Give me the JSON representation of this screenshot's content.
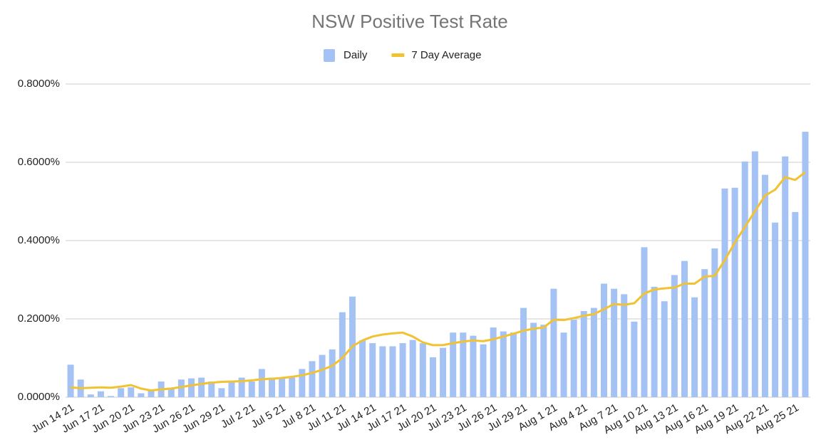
{
  "chart_data": {
    "type": "bar",
    "title": "NSW Positive Test Rate",
    "categories": [
      "Jun 14 21",
      null,
      null,
      "Jun 17 21",
      null,
      null,
      "Jun 20 21",
      null,
      null,
      "Jun 23 21",
      null,
      null,
      "Jun 26 21",
      null,
      null,
      "Jun 29 21",
      null,
      null,
      "Jul 2 21",
      null,
      null,
      "Jul 5 21",
      null,
      null,
      "Jul 8 21",
      null,
      null,
      "Jul 11 21",
      null,
      null,
      "Jul 14 21",
      null,
      null,
      "Jul 17 21",
      null,
      null,
      "Jul 20 21",
      null,
      null,
      "Jul 23 21",
      null,
      null,
      "Jul 26 21",
      null,
      null,
      "Jul 29 21",
      null,
      null,
      "Aug 1 21",
      null,
      null,
      "Aug 4 21",
      null,
      null,
      "Aug 7 21",
      null,
      null,
      "Aug 10 21",
      null,
      null,
      "Aug 13 21",
      null,
      null,
      "Aug 16 21",
      null,
      null,
      "Aug 19 21",
      null,
      null,
      "Aug 22 21",
      null,
      null,
      "Aug 25 21",
      null
    ],
    "series": [
      {
        "name": "Daily",
        "kind": "bar",
        "color": "#a4c2f4",
        "values": [
          0.083,
          0.045,
          0.007,
          0.015,
          0.003,
          0.023,
          0.025,
          0.01,
          0.018,
          0.04,
          0.022,
          0.045,
          0.048,
          0.05,
          0.04,
          0.023,
          0.04,
          0.05,
          0.04,
          0.072,
          0.05,
          0.048,
          0.05,
          0.072,
          0.092,
          0.108,
          0.122,
          0.217,
          0.257,
          0.145,
          0.138,
          0.13,
          0.13,
          0.138,
          0.146,
          0.138,
          0.102,
          0.126,
          0.165,
          0.165,
          0.157,
          0.135,
          0.178,
          0.168,
          0.165,
          0.228,
          0.19,
          0.185,
          0.277,
          0.165,
          0.198,
          0.22,
          0.228,
          0.29,
          0.277,
          0.263,
          0.193,
          0.383,
          0.282,
          0.245,
          0.312,
          0.348,
          0.255,
          0.327,
          0.38,
          0.533,
          0.535,
          0.602,
          0.628,
          0.568,
          0.446,
          0.615,
          0.473,
          0.678
        ]
      },
      {
        "name": "7 Day Average",
        "kind": "line",
        "color": "#f1c232",
        "values": [
          0.025,
          0.023,
          0.024,
          0.025,
          0.024,
          0.027,
          0.031,
          0.022,
          0.017,
          0.02,
          0.022,
          0.026,
          0.03,
          0.034,
          0.037,
          0.039,
          0.04,
          0.041,
          0.043,
          0.046,
          0.047,
          0.049,
          0.052,
          0.056,
          0.062,
          0.07,
          0.08,
          0.1,
          0.13,
          0.145,
          0.155,
          0.16,
          0.163,
          0.165,
          0.155,
          0.14,
          0.133,
          0.133,
          0.138,
          0.142,
          0.145,
          0.143,
          0.148,
          0.155,
          0.162,
          0.17,
          0.175,
          0.178,
          0.198,
          0.197,
          0.202,
          0.208,
          0.212,
          0.225,
          0.238,
          0.236,
          0.24,
          0.265,
          0.275,
          0.278,
          0.28,
          0.29,
          0.29,
          0.308,
          0.31,
          0.35,
          0.395,
          0.435,
          0.475,
          0.515,
          0.53,
          0.562,
          0.555,
          0.575
        ]
      }
    ],
    "ylim": [
      0,
      0.8
    ],
    "yticks": [
      {
        "value": 0,
        "label": "0.0000%"
      },
      {
        "value": 0.2,
        "label": "0.2000%"
      },
      {
        "value": 0.4,
        "label": "0.4000%"
      },
      {
        "value": 0.6,
        "label": "0.6000%"
      },
      {
        "value": 0.8,
        "label": "0.8000%"
      }
    ],
    "grid": true,
    "legend": "top"
  }
}
